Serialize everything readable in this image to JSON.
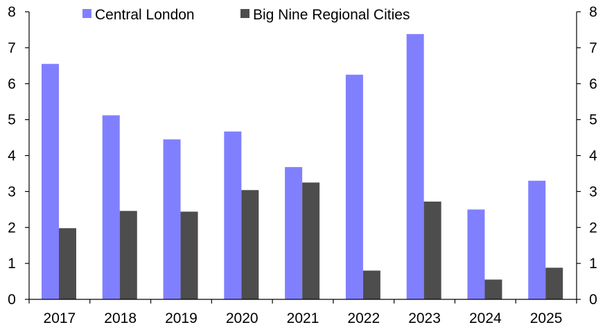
{
  "chart_data": {
    "type": "bar",
    "categories": [
      "2017",
      "2018",
      "2019",
      "2020",
      "2021",
      "2022",
      "2023",
      "2024",
      "2025"
    ],
    "series": [
      {
        "name": "Central London",
        "color": "#8080ff",
        "values": [
          6.55,
          5.12,
          4.45,
          4.67,
          3.68,
          6.25,
          7.38,
          2.5,
          3.3
        ]
      },
      {
        "name": "Big Nine Regional Cities",
        "color": "#4d4d4d",
        "values": [
          1.98,
          2.46,
          2.44,
          3.04,
          3.25,
          0.8,
          2.72,
          0.55,
          0.88
        ]
      }
    ],
    "ylim": [
      0,
      8
    ],
    "yticks": [
      0,
      1,
      2,
      3,
      4,
      5,
      6,
      7,
      8
    ],
    "secondary_yticks": [
      0,
      1,
      2,
      3,
      4,
      5,
      6,
      7,
      8
    ],
    "title": "",
    "xlabel": "",
    "ylabel": "",
    "legend_position": "top",
    "grid": false
  }
}
